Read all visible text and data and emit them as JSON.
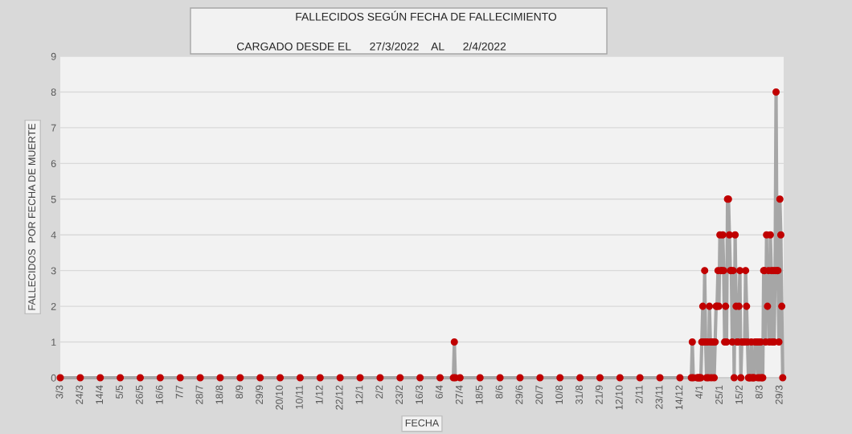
{
  "chart_data": {
    "type": "line",
    "title": "FALLECIDOS SEGÚN FECHA DE FALLECIMIENTO",
    "subtitle": "CARGADO DESDE EL      27/3/2022    AL      2/4/2022",
    "xlabel": "FECHA",
    "ylabel": "FALLECIDOS  POR FECHA DE MUERTE",
    "series": [
      {
        "color": "#c00000",
        "x": [
          "2020-03-03",
          "2020-03-24",
          "2020-04-14",
          "2020-05-05",
          "2020-05-26",
          "2020-06-16",
          "2020-07-07",
          "2020-07-28",
          "2020-08-18",
          "2020-09-08",
          "2020-09-29",
          "2020-10-20",
          "2020-11-10",
          "2020-12-01",
          "2020-12-22",
          "2021-01-12",
          "2021-02-02",
          "2021-02-23",
          "2021-03-16",
          "2021-04-06",
          "2021-04-20",
          "2021-04-21",
          "2021-04-22",
          "2021-04-27",
          "2021-05-18",
          "2021-06-08",
          "2021-06-29",
          "2021-07-20",
          "2021-08-10",
          "2021-08-31",
          "2021-09-21",
          "2021-10-12",
          "2021-11-02",
          "2021-11-23",
          "2021-12-14",
          "2021-12-26",
          "2021-12-27",
          "2021-12-28",
          "2022-01-01",
          "2022-01-02",
          "2022-01-03",
          "2022-01-04",
          "2022-01-05",
          "2022-01-06",
          "2022-01-07",
          "2022-01-08",
          "2022-01-09",
          "2022-01-10",
          "2022-01-11",
          "2022-01-12",
          "2022-01-13",
          "2022-01-14",
          "2022-01-15",
          "2022-01-16",
          "2022-01-17",
          "2022-01-18",
          "2022-01-19",
          "2022-01-20",
          "2022-01-21",
          "2022-01-22",
          "2022-01-23",
          "2022-01-24",
          "2022-01-25",
          "2022-01-26",
          "2022-01-27",
          "2022-01-28",
          "2022-01-29",
          "2022-01-30",
          "2022-01-31",
          "2022-02-01",
          "2022-02-02",
          "2022-02-03",
          "2022-02-04",
          "2022-02-05",
          "2022-02-06",
          "2022-02-07",
          "2022-02-08",
          "2022-02-09",
          "2022-02-10",
          "2022-02-11",
          "2022-02-12",
          "2022-02-13",
          "2022-02-14",
          "2022-02-15",
          "2022-02-16",
          "2022-02-17",
          "2022-02-18",
          "2022-02-19",
          "2022-02-20",
          "2022-02-21",
          "2022-02-22",
          "2022-02-23",
          "2022-02-24",
          "2022-02-25",
          "2022-02-26",
          "2022-02-27",
          "2022-02-28",
          "2022-03-01",
          "2022-03-02",
          "2022-03-03",
          "2022-03-04",
          "2022-03-05",
          "2022-03-06",
          "2022-03-07",
          "2022-03-08",
          "2022-03-09",
          "2022-03-10",
          "2022-03-11",
          "2022-03-12",
          "2022-03-13",
          "2022-03-14",
          "2022-03-15",
          "2022-03-16",
          "2022-03-17",
          "2022-03-18",
          "2022-03-19",
          "2022-03-20",
          "2022-03-21",
          "2022-03-22",
          "2022-03-23",
          "2022-03-24",
          "2022-03-25",
          "2022-03-26",
          "2022-03-27",
          "2022-03-28",
          "2022-03-29",
          "2022-03-30",
          "2022-03-31",
          "2022-04-01"
        ],
        "values": [
          0,
          0,
          0,
          0,
          0,
          0,
          0,
          0,
          0,
          0,
          0,
          0,
          0,
          0,
          0,
          0,
          0,
          0,
          0,
          0,
          0,
          1,
          0,
          0,
          0,
          0,
          0,
          0,
          0,
          0,
          0,
          0,
          0,
          0,
          0,
          0,
          1,
          0,
          0,
          0,
          0,
          0,
          0,
          1,
          2,
          1,
          3,
          1,
          0,
          1,
          0,
          2,
          1,
          0,
          1,
          1,
          0,
          1,
          2,
          2,
          3,
          2,
          4,
          3,
          3,
          4,
          3,
          1,
          2,
          1,
          5,
          5,
          4,
          3,
          3,
          1,
          3,
          0,
          4,
          2,
          1,
          1,
          2,
          3,
          0,
          1,
          1,
          1,
          1,
          3,
          2,
          1,
          0,
          0,
          0,
          1,
          0,
          0,
          0,
          1,
          1,
          1,
          0,
          1,
          0,
          1,
          0,
          0,
          3,
          3,
          1,
          4,
          2,
          3,
          1,
          4,
          3,
          1,
          3,
          1,
          3,
          8,
          3,
          3,
          1,
          5,
          4,
          2,
          0
        ]
      }
    ],
    "xlim": [
      "2020-03-03",
      "2022-04-02"
    ],
    "ylim": [
      0,
      9
    ],
    "yticks": [
      0,
      1,
      2,
      3,
      4,
      5,
      6,
      7,
      8,
      9
    ],
    "xticks": [
      {
        "value": "2020-03-03",
        "label": "3/3"
      },
      {
        "value": "2020-03-24",
        "label": "24/3"
      },
      {
        "value": "2020-04-14",
        "label": "14/4"
      },
      {
        "value": "2020-05-05",
        "label": "5/5"
      },
      {
        "value": "2020-05-26",
        "label": "26/5"
      },
      {
        "value": "2020-06-16",
        "label": "16/6"
      },
      {
        "value": "2020-07-07",
        "label": "7/7"
      },
      {
        "value": "2020-07-28",
        "label": "28/7"
      },
      {
        "value": "2020-08-18",
        "label": "18/8"
      },
      {
        "value": "2020-09-08",
        "label": "8/9"
      },
      {
        "value": "2020-09-29",
        "label": "29/9"
      },
      {
        "value": "2020-10-20",
        "label": "20/10"
      },
      {
        "value": "2020-11-10",
        "label": "10/11"
      },
      {
        "value": "2020-12-01",
        "label": "1/12"
      },
      {
        "value": "2020-12-22",
        "label": "22/12"
      },
      {
        "value": "2021-01-12",
        "label": "12/1"
      },
      {
        "value": "2021-02-02",
        "label": "2/2"
      },
      {
        "value": "2021-02-23",
        "label": "23/2"
      },
      {
        "value": "2021-03-16",
        "label": "16/3"
      },
      {
        "value": "2021-04-06",
        "label": "6/4"
      },
      {
        "value": "2021-04-27",
        "label": "27/4"
      },
      {
        "value": "2021-05-18",
        "label": "18/5"
      },
      {
        "value": "2021-06-08",
        "label": "8/6"
      },
      {
        "value": "2021-06-29",
        "label": "29/6"
      },
      {
        "value": "2021-07-20",
        "label": "20/7"
      },
      {
        "value": "2021-08-10",
        "label": "10/8"
      },
      {
        "value": "2021-08-31",
        "label": "31/8"
      },
      {
        "value": "2021-09-21",
        "label": "21/9"
      },
      {
        "value": "2021-10-12",
        "label": "12/10"
      },
      {
        "value": "2021-11-02",
        "label": "2/11"
      },
      {
        "value": "2021-11-23",
        "label": "23/11"
      },
      {
        "value": "2021-12-14",
        "label": "14/12"
      },
      {
        "value": "2022-01-04",
        "label": "4/1"
      },
      {
        "value": "2022-01-25",
        "label": "25/1"
      },
      {
        "value": "2022-02-15",
        "label": "15/2"
      },
      {
        "value": "2022-03-08",
        "label": "8/3"
      },
      {
        "value": "2022-03-29",
        "label": "29/3"
      }
    ],
    "grid": "y",
    "marker": "circle",
    "line_style": "solid"
  }
}
